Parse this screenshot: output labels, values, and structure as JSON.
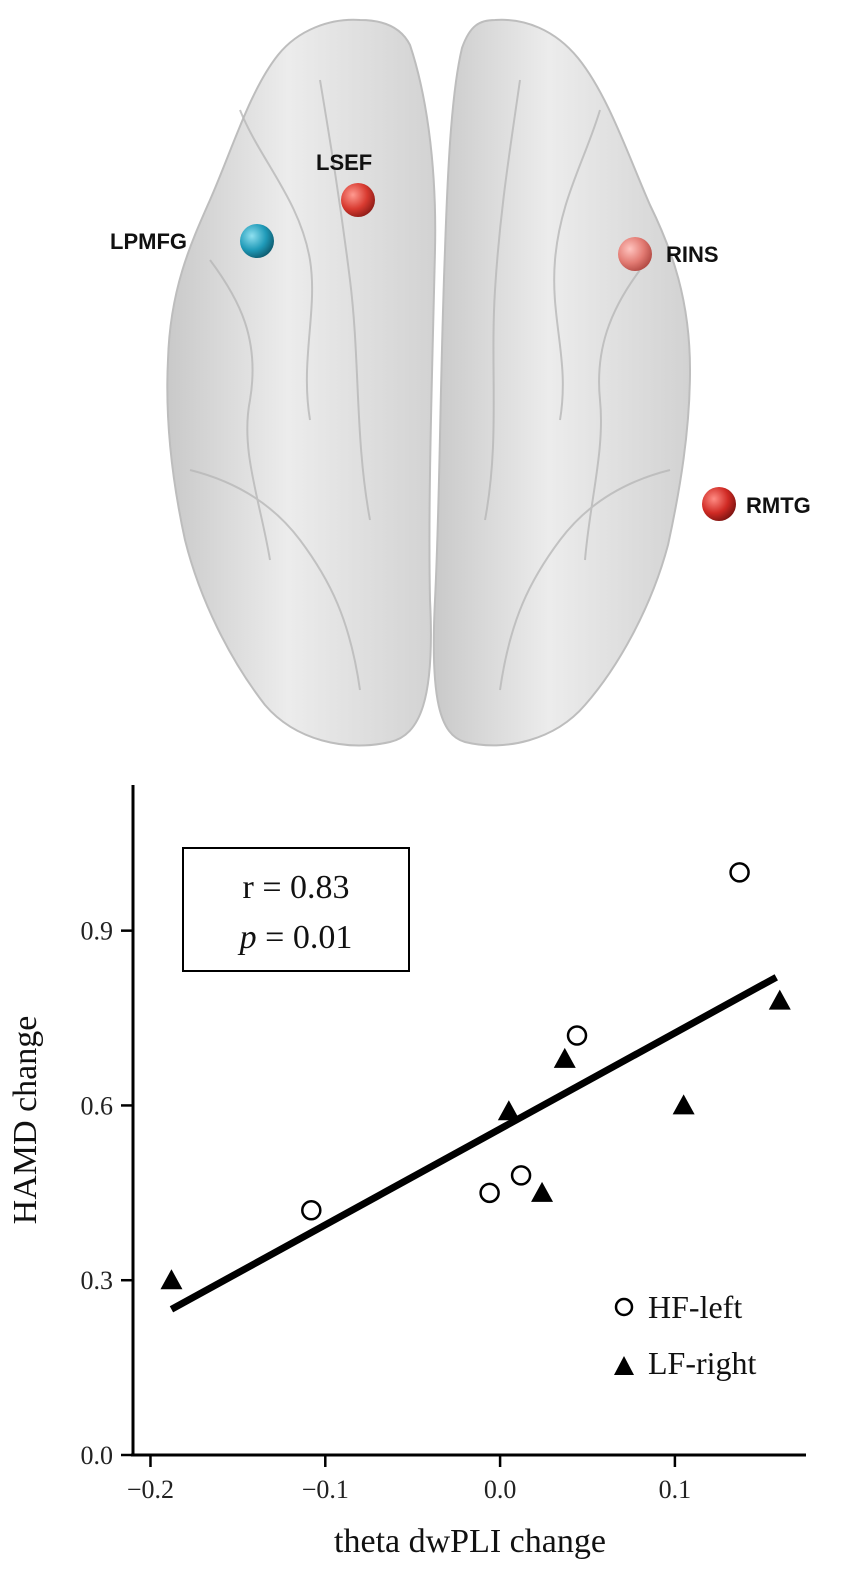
{
  "brain": {
    "regions": [
      {
        "label": "LSEF",
        "color": "#d83a30"
      },
      {
        "label": "LPMFG",
        "color": "#1f9ab8"
      },
      {
        "label": "RINS",
        "color": "#e27a72"
      },
      {
        "label": "RMTG",
        "color": "#d02a24"
      }
    ]
  },
  "chart_data": {
    "type": "scatter",
    "xlabel": "theta dwPLI change",
    "ylabel": "HAMD change",
    "xlim": [
      -0.21,
      0.175
    ],
    "ylim": [
      0.0,
      1.15
    ],
    "xticks": [
      -0.2,
      -0.1,
      0.0,
      0.1
    ],
    "xtick_labels": [
      "−0.2",
      "−0.1",
      "0.0",
      "0.1"
    ],
    "yticks": [
      0.0,
      0.3,
      0.6,
      0.9
    ],
    "ytick_labels": [
      "0.0",
      "0.3",
      "0.6",
      "0.9"
    ],
    "grid": false,
    "legend_position": "bottom-right",
    "annotation": {
      "r_line": "r = 0.83",
      "p_symbol": "p",
      "p_rest": " = 0.01"
    },
    "series": [
      {
        "name": "HF-left",
        "marker": "open-circle",
        "points": [
          {
            "x": -0.108,
            "y": 0.42
          },
          {
            "x": -0.006,
            "y": 0.45
          },
          {
            "x": 0.012,
            "y": 0.48
          },
          {
            "x": 0.044,
            "y": 0.72
          },
          {
            "x": 0.137,
            "y": 1.0
          }
        ]
      },
      {
        "name": "LF-right",
        "marker": "filled-triangle",
        "points": [
          {
            "x": -0.188,
            "y": 0.3
          },
          {
            "x": 0.005,
            "y": 0.59
          },
          {
            "x": 0.024,
            "y": 0.45
          },
          {
            "x": 0.037,
            "y": 0.68
          },
          {
            "x": 0.105,
            "y": 0.6
          },
          {
            "x": 0.16,
            "y": 0.78
          }
        ]
      }
    ],
    "fit_line": {
      "x": [
        -0.188,
        0.158
      ],
      "y": [
        0.25,
        0.82
      ]
    }
  }
}
